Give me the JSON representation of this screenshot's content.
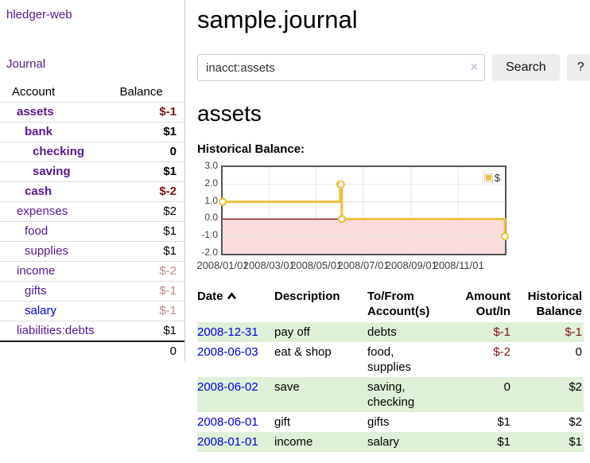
{
  "app": {
    "title": "hledger-web"
  },
  "sidebar": {
    "journal_link": "Journal",
    "accounts": {
      "header": {
        "account": "Account",
        "balance": "Balance"
      },
      "rows": [
        {
          "name": "assets",
          "balance": "$-1"
        },
        {
          "name": "bank",
          "balance": "$1"
        },
        {
          "name": "checking",
          "balance": "0"
        },
        {
          "name": "saving",
          "balance": "$1"
        },
        {
          "name": "cash",
          "balance": "$-2"
        },
        {
          "name": "expenses",
          "balance": "$2"
        },
        {
          "name": "food",
          "balance": "$1"
        },
        {
          "name": "supplies",
          "balance": "$1"
        },
        {
          "name": "income",
          "balance": "$-2"
        },
        {
          "name": "gifts",
          "balance": "$-1"
        },
        {
          "name": "salary",
          "balance": "$-1"
        },
        {
          "name": "liabilities:debts",
          "balance": "$1"
        }
      ],
      "total": "0"
    }
  },
  "main": {
    "title": "sample.journal",
    "search": {
      "value": "inacct:assets",
      "clear_icon": "×",
      "search_button": "Search",
      "help_button": "?"
    },
    "account_heading": "assets",
    "chart_label": "Historical Balance:"
  },
  "chart_data": {
    "type": "line",
    "title": "Historical Balance",
    "step": true,
    "series": [
      {
        "name": "$",
        "color": "#edc240",
        "points": [
          {
            "date": "2008-01-01",
            "value": 1
          },
          {
            "date": "2008-06-01",
            "value": 2
          },
          {
            "date": "2008-06-02",
            "value": 2
          },
          {
            "date": "2008-06-03",
            "value": 0
          },
          {
            "date": "2008-12-31",
            "value": -1
          }
        ]
      }
    ],
    "x_range": [
      "2008-01-01",
      "2008-12-31"
    ],
    "ylim": [
      -2,
      3
    ],
    "y_ticks": [
      "3.0",
      "2.0",
      "1.0",
      "0.0",
      "-1.0",
      "-2.0"
    ],
    "x_tick_dates": [
      "2008-01-01",
      "2008-03-01",
      "2008-05-01",
      "2008-07-01",
      "2008-09-01",
      "2008-11-01"
    ],
    "x_ticks": [
      "2008/01/01",
      "2008/03/01",
      "2008/05/01",
      "2008/07/01",
      "2008/09/01",
      "2008/11/01"
    ],
    "grid": true,
    "legend": {
      "label": "$",
      "position": "top-right"
    },
    "colors": {
      "line": "#edc240",
      "negative_region": "#fbdcdc",
      "zero_line": "#8b0000",
      "gridline": "#e6e6e6",
      "plot_border": "#545454"
    }
  },
  "register": {
    "headers": {
      "date": "Date",
      "description": "Description",
      "accounts": "To/From Account(s)",
      "amount": "Amount Out/In",
      "balance": "Historical Balance"
    },
    "rows": [
      {
        "date": "2008-12-31",
        "description": "pay off",
        "accounts": "debts",
        "amount": "$-1",
        "balance": "$-1"
      },
      {
        "date": "2008-06-03",
        "description": "eat & shop",
        "accounts": "food, supplies",
        "amount": "$-2",
        "balance": "0"
      },
      {
        "date": "2008-06-02",
        "description": "save",
        "accounts": "saving, checking",
        "amount": "0",
        "balance": "$2"
      },
      {
        "date": "2008-06-01",
        "description": "gift",
        "accounts": "gifts",
        "amount": "$1",
        "balance": "$2"
      },
      {
        "date": "2008-01-01",
        "description": "income",
        "accounts": "salary",
        "amount": "$1",
        "balance": "$1"
      }
    ]
  }
}
